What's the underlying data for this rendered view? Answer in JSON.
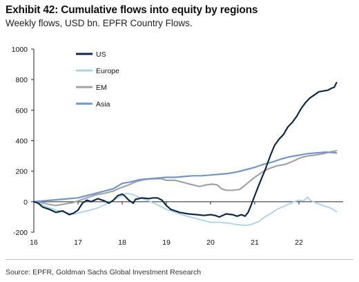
{
  "header": {
    "title": "Exhibit 42: Cumulative flows into equity by regions",
    "subtitle": "Weekly flows, USD bn. EPFR Country Flows."
  },
  "footer": {
    "source": "Source: EPFR, Goldman Sachs Global Investment Research"
  },
  "chart_data": {
    "type": "line",
    "title": "Exhibit 42: Cumulative flows into equity by regions",
    "subtitle": "Weekly flows, USD bn. EPFR Country Flows.",
    "xlabel": "",
    "ylabel": "",
    "x_ticks": [
      "16",
      "17",
      "18",
      "19",
      "20",
      "21",
      "22"
    ],
    "y_ticks": [
      -200,
      0,
      200,
      400,
      600,
      800,
      1000
    ],
    "xlim": [
      2016.0,
      2023.0
    ],
    "ylim": [
      -200,
      1000
    ],
    "grid": false,
    "legend": "top-left",
    "series": [
      {
        "name": "US",
        "color": "#0b2a4a",
        "width": 2.2,
        "points": [
          [
            2016.0,
            0
          ],
          [
            2016.1,
            -10
          ],
          [
            2016.2,
            -35
          ],
          [
            2016.35,
            -50
          ],
          [
            2016.5,
            -70
          ],
          [
            2016.65,
            -60
          ],
          [
            2016.8,
            -85
          ],
          [
            2016.9,
            -75
          ],
          [
            2017.0,
            -55
          ],
          [
            2017.1,
            -10
          ],
          [
            2017.2,
            10
          ],
          [
            2017.3,
            0
          ],
          [
            2017.45,
            20
          ],
          [
            2017.6,
            5
          ],
          [
            2017.7,
            -10
          ],
          [
            2017.8,
            10
          ],
          [
            2017.9,
            40
          ],
          [
            2018.0,
            50
          ],
          [
            2018.05,
            40
          ],
          [
            2018.15,
            10
          ],
          [
            2018.25,
            -10
          ],
          [
            2018.3,
            15
          ],
          [
            2018.45,
            25
          ],
          [
            2018.6,
            20
          ],
          [
            2018.7,
            25
          ],
          [
            2018.8,
            25
          ],
          [
            2018.9,
            10
          ],
          [
            2019.0,
            -25
          ],
          [
            2019.1,
            -50
          ],
          [
            2019.3,
            -70
          ],
          [
            2019.5,
            -80
          ],
          [
            2019.7,
            -85
          ],
          [
            2019.85,
            -90
          ],
          [
            2020.0,
            -85
          ],
          [
            2020.1,
            -90
          ],
          [
            2020.2,
            -100
          ],
          [
            2020.35,
            -80
          ],
          [
            2020.5,
            -85
          ],
          [
            2020.6,
            -95
          ],
          [
            2020.7,
            -85
          ],
          [
            2020.78,
            -95
          ],
          [
            2020.85,
            -70
          ],
          [
            2020.92,
            -20
          ],
          [
            2021.0,
            40
          ],
          [
            2021.08,
            100
          ],
          [
            2021.15,
            150
          ],
          [
            2021.25,
            220
          ],
          [
            2021.35,
            300
          ],
          [
            2021.45,
            370
          ],
          [
            2021.55,
            410
          ],
          [
            2021.65,
            440
          ],
          [
            2021.75,
            490
          ],
          [
            2021.85,
            520
          ],
          [
            2021.95,
            560
          ],
          [
            2022.05,
            610
          ],
          [
            2022.15,
            650
          ],
          [
            2022.25,
            680
          ],
          [
            2022.35,
            700
          ],
          [
            2022.45,
            720
          ],
          [
            2022.55,
            725
          ],
          [
            2022.65,
            730
          ],
          [
            2022.75,
            745
          ],
          [
            2022.8,
            750
          ],
          [
            2022.85,
            780
          ]
        ]
      },
      {
        "name": "Europe",
        "color": "#a8d1ee",
        "width": 1.8,
        "points": [
          [
            2016.0,
            0
          ],
          [
            2016.15,
            -15
          ],
          [
            2016.3,
            -35
          ],
          [
            2016.5,
            -55
          ],
          [
            2016.7,
            -70
          ],
          [
            2016.9,
            -80
          ],
          [
            2017.0,
            -75
          ],
          [
            2017.2,
            -60
          ],
          [
            2017.4,
            -45
          ],
          [
            2017.6,
            -20
          ],
          [
            2017.8,
            10
          ],
          [
            2018.0,
            40
          ],
          [
            2018.1,
            55
          ],
          [
            2018.2,
            50
          ],
          [
            2018.3,
            40
          ],
          [
            2018.45,
            20
          ],
          [
            2018.6,
            5
          ],
          [
            2018.8,
            -20
          ],
          [
            2019.0,
            -50
          ],
          [
            2019.2,
            -70
          ],
          [
            2019.4,
            -90
          ],
          [
            2019.6,
            -105
          ],
          [
            2019.8,
            -120
          ],
          [
            2020.0,
            -135
          ],
          [
            2020.2,
            -135
          ],
          [
            2020.4,
            -140
          ],
          [
            2020.6,
            -150
          ],
          [
            2020.8,
            -155
          ],
          [
            2020.9,
            -150
          ],
          [
            2021.0,
            -140
          ],
          [
            2021.1,
            -130
          ],
          [
            2021.2,
            -105
          ],
          [
            2021.35,
            -80
          ],
          [
            2021.5,
            -50
          ],
          [
            2021.7,
            -25
          ],
          [
            2021.85,
            -5
          ],
          [
            2022.0,
            10
          ],
          [
            2022.1,
            5
          ],
          [
            2022.2,
            30
          ],
          [
            2022.25,
            10
          ],
          [
            2022.4,
            -10
          ],
          [
            2022.55,
            -25
          ],
          [
            2022.7,
            -40
          ],
          [
            2022.8,
            -55
          ],
          [
            2022.85,
            -65
          ]
        ]
      },
      {
        "name": "EM",
        "color": "#a3a3a3",
        "width": 2.2,
        "points": [
          [
            2016.0,
            0
          ],
          [
            2016.15,
            -5
          ],
          [
            2016.3,
            -15
          ],
          [
            2016.5,
            -25
          ],
          [
            2016.7,
            -15
          ],
          [
            2016.9,
            -5
          ],
          [
            2017.0,
            5
          ],
          [
            2017.2,
            25
          ],
          [
            2017.4,
            45
          ],
          [
            2017.6,
            55
          ],
          [
            2017.8,
            70
          ],
          [
            2017.95,
            90
          ],
          [
            2018.05,
            100
          ],
          [
            2018.15,
            110
          ],
          [
            2018.3,
            130
          ],
          [
            2018.5,
            145
          ],
          [
            2018.7,
            150
          ],
          [
            2018.9,
            150
          ],
          [
            2019.0,
            140
          ],
          [
            2019.2,
            140
          ],
          [
            2019.4,
            125
          ],
          [
            2019.6,
            110
          ],
          [
            2019.75,
            100
          ],
          [
            2019.9,
            110
          ],
          [
            2020.05,
            115
          ],
          [
            2020.15,
            110
          ],
          [
            2020.25,
            85
          ],
          [
            2020.35,
            75
          ],
          [
            2020.5,
            75
          ],
          [
            2020.65,
            80
          ],
          [
            2020.75,
            100
          ],
          [
            2020.85,
            125
          ],
          [
            2021.0,
            160
          ],
          [
            2021.15,
            190
          ],
          [
            2021.3,
            215
          ],
          [
            2021.5,
            235
          ],
          [
            2021.7,
            245
          ],
          [
            2021.9,
            270
          ],
          [
            2022.05,
            290
          ],
          [
            2022.2,
            300
          ],
          [
            2022.35,
            305
          ],
          [
            2022.55,
            315
          ],
          [
            2022.7,
            325
          ],
          [
            2022.85,
            335
          ]
        ]
      },
      {
        "name": "Asia",
        "color": "#6f97cc",
        "width": 2.2,
        "points": [
          [
            2016.0,
            0
          ],
          [
            2016.2,
            5
          ],
          [
            2016.4,
            10
          ],
          [
            2016.6,
            15
          ],
          [
            2016.8,
            20
          ],
          [
            2017.0,
            25
          ],
          [
            2017.2,
            40
          ],
          [
            2017.4,
            55
          ],
          [
            2017.6,
            70
          ],
          [
            2017.8,
            85
          ],
          [
            2018.0,
            120
          ],
          [
            2018.2,
            130
          ],
          [
            2018.4,
            145
          ],
          [
            2018.6,
            150
          ],
          [
            2018.8,
            155
          ],
          [
            2019.0,
            160
          ],
          [
            2019.2,
            160
          ],
          [
            2019.4,
            165
          ],
          [
            2019.6,
            170
          ],
          [
            2019.8,
            170
          ],
          [
            2020.0,
            175
          ],
          [
            2020.2,
            180
          ],
          [
            2020.4,
            185
          ],
          [
            2020.6,
            195
          ],
          [
            2020.8,
            210
          ],
          [
            2021.0,
            225
          ],
          [
            2021.2,
            245
          ],
          [
            2021.4,
            260
          ],
          [
            2021.6,
            280
          ],
          [
            2021.8,
            295
          ],
          [
            2022.0,
            305
          ],
          [
            2022.2,
            315
          ],
          [
            2022.4,
            320
          ],
          [
            2022.6,
            325
          ],
          [
            2022.75,
            322
          ],
          [
            2022.85,
            320
          ]
        ]
      }
    ]
  }
}
